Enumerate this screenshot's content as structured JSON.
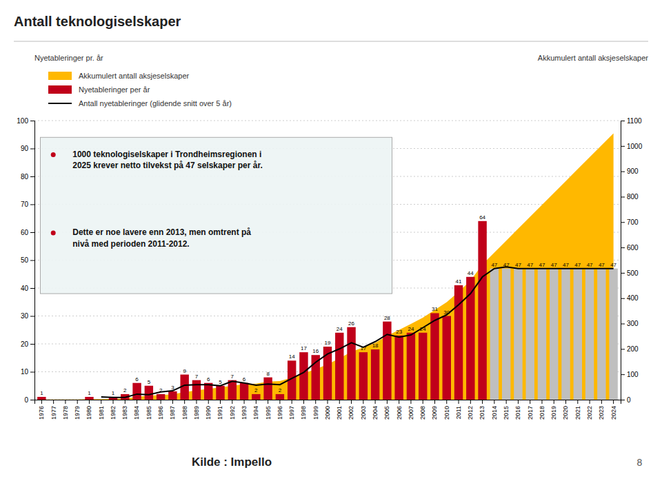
{
  "chart_data": {
    "type": "bar",
    "title": "Antall teknologiselskaper",
    "ylabel": "Nyetableringer pr. år",
    "y2label": "Akkumulert antall aksjeselskaper",
    "categories": [
      "1976",
      "1977",
      "1978",
      "1979",
      "1980",
      "1981",
      "1982",
      "1983",
      "1984",
      "1985",
      "1986",
      "1987",
      "1988",
      "1989",
      "1990",
      "1991",
      "1992",
      "1993",
      "1994",
      "1995",
      "1996",
      "1997",
      "1998",
      "1999",
      "2000",
      "2001",
      "2002",
      "2003",
      "2004",
      "2005",
      "2006",
      "2007",
      "2008",
      "2009",
      "2010",
      "2011",
      "2012",
      "2013",
      "2014",
      "2015",
      "2016",
      "2017",
      "2018",
      "2019",
      "2020",
      "2021",
      "2022",
      "2023",
      "2024"
    ],
    "series": [
      {
        "name": "Akkumulert antall aksjeselskaper",
        "type": "area",
        "axis": "y2",
        "color": "#FFB800",
        "values": [
          1,
          1,
          1,
          1,
          2,
          2,
          3,
          5,
          11,
          16,
          18,
          21,
          30,
          37,
          43,
          48,
          55,
          61,
          63,
          71,
          73,
          87,
          104,
          120,
          139,
          163,
          189,
          206,
          224,
          252,
          275,
          299,
          323,
          354,
          384,
          425,
          469,
          533,
          580,
          627,
          674,
          721,
          768,
          815,
          862,
          909,
          956,
          1003,
          1050
        ]
      },
      {
        "name": "Nyetableringer per år",
        "type": "bar",
        "color": "#C0001A",
        "colors": [
          "#C0001A",
          "#C0001A",
          "#C0001A",
          "#C0001A",
          "#C0001A",
          "#C0001A",
          "#C0001A",
          "#C0001A",
          "#C0001A",
          "#C0001A",
          "#C0001A",
          "#C0001A",
          "#C0001A",
          "#C0001A",
          "#C0001A",
          "#C0001A",
          "#C0001A",
          "#C0001A",
          "#C0001A",
          "#C0001A",
          "#C0001A",
          "#C0001A",
          "#C0001A",
          "#C0001A",
          "#C0001A",
          "#C0001A",
          "#C0001A",
          "#C0001A",
          "#C0001A",
          "#C0001A",
          "#C0001A",
          "#C0001A",
          "#C0001A",
          "#C0001A",
          "#C0001A",
          "#C0001A",
          "#C0001A",
          "#C0001A",
          "#BFBFBF",
          "#BFBFBF",
          "#BFBFBF",
          "#BFBFBF",
          "#BFBFBF",
          "#BFBFBF",
          "#BFBFBF",
          "#BFBFBF",
          "#BFBFBF",
          "#BFBFBF",
          "#BFBFBF"
        ],
        "values": [
          1,
          0,
          0,
          0,
          1,
          0,
          1,
          2,
          6,
          5,
          2,
          3,
          9,
          7,
          6,
          5,
          7,
          6,
          2,
          8,
          2,
          14,
          17,
          16,
          19,
          24,
          26,
          17,
          18,
          28,
          23,
          24,
          24,
          31,
          30,
          41,
          44,
          64,
          47,
          47,
          47,
          47,
          47,
          47,
          47,
          47,
          47,
          47,
          47
        ],
        "value_labels": [
          "1",
          null,
          null,
          null,
          "1",
          null,
          "1",
          "2",
          "6",
          "5",
          "2",
          "3",
          "9",
          "7",
          "6",
          "5",
          "7",
          "6",
          "2",
          "8",
          "2",
          "14",
          "17",
          "16",
          "19",
          "24",
          "26",
          "17",
          "18",
          "28",
          "23",
          "24",
          "24",
          "31",
          "30",
          "41",
          "44",
          "64",
          "47",
          "47",
          "47",
          "47",
          "47",
          "47",
          "47",
          "47",
          "47",
          "47",
          "47"
        ]
      },
      {
        "name": "Antall nyetableringer (glidende snitt over 5 år)",
        "type": "line",
        "color": "#000000",
        "values": [
          null,
          null,
          null,
          null,
          null,
          1.0,
          0.8,
          0.8,
          2.0,
          1.8,
          2.8,
          3.2,
          5.2,
          5.4,
          5.4,
          5.0,
          6.6,
          6.0,
          5.2,
          5.6,
          5.4,
          7.6,
          9.8,
          13.4,
          16.4,
          18.2,
          20.4,
          18.8,
          20.8,
          23.4,
          22.4,
          23.2,
          25.8,
          28.4,
          30.4,
          34.0,
          38.0,
          44.0,
          47.0,
          47.6,
          47.0,
          47.0,
          47.0,
          47.0,
          47.0,
          47.0,
          47.0,
          47.0,
          47.0
        ]
      }
    ],
    "ylim": [
      0,
      100
    ],
    "yticks": [
      0,
      10,
      20,
      30,
      40,
      50,
      60,
      70,
      80,
      90,
      100
    ],
    "y2lim": [
      0,
      1100
    ],
    "y2ticks": [
      0,
      100,
      200,
      300,
      400,
      500,
      600,
      700,
      800,
      900,
      1000,
      1100
    ],
    "grid": true,
    "legend": "top-left",
    "annotations": [
      "1000 teknologiselskaper i Trondheimsregionen i\n2025 krever netto tilvekst på 47 selskaper per år.",
      "Dette er noe lavere enn 2013, men omtrent på\nnivå med perioden 2011-2012."
    ],
    "source": "Kilde : Impello",
    "page_number": "8"
  }
}
